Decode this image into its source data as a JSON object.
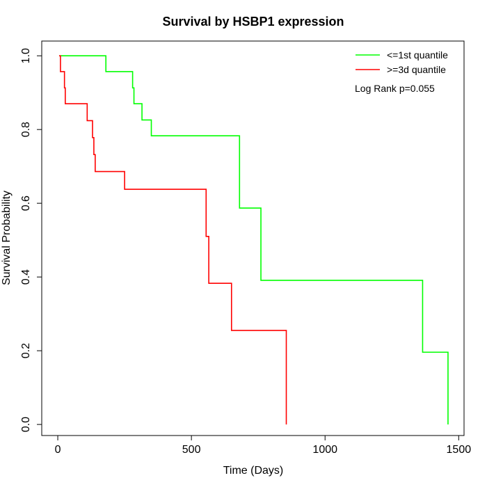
{
  "chart_data": {
    "type": "line",
    "title": "Survival by HSBP1 expression",
    "xlabel": "Time (Days)",
    "ylabel": "Survival Probability",
    "xlim": [
      -60,
      1520
    ],
    "ylim": [
      -0.03,
      1.04
    ],
    "x_ticks": [
      0,
      500,
      1000,
      1500
    ],
    "x_tick_labels": [
      "0",
      "500",
      "1000",
      "1500"
    ],
    "y_ticks": [
      0.0,
      0.2,
      0.4,
      0.6,
      0.8,
      1.0
    ],
    "y_tick_labels": [
      "0.0",
      "0.2",
      "0.4",
      "0.6",
      "0.8",
      "1.0"
    ],
    "legend_position": "top-right",
    "grid": false,
    "series": [
      {
        "name": "<=1st quantile",
        "color": "#00ff00",
        "x": [
          5,
          180,
          180,
          280,
          280,
          285,
          285,
          315,
          315,
          350,
          350,
          680,
          680,
          760,
          760,
          1365,
          1365,
          1460,
          1460
        ],
        "y": [
          1.0,
          1.0,
          0.957,
          0.957,
          0.913,
          0.913,
          0.87,
          0.87,
          0.826,
          0.826,
          0.783,
          0.783,
          0.587,
          0.587,
          0.391,
          0.391,
          0.196,
          0.196,
          0.0
        ]
      },
      {
        "name": ">=3d quantile",
        "color": "#ff0000",
        "x": [
          5,
          10,
          10,
          25,
          25,
          28,
          28,
          110,
          110,
          130,
          130,
          135,
          135,
          140,
          140,
          250,
          250,
          555,
          555,
          565,
          565,
          650,
          650,
          855,
          855
        ],
        "y": [
          1.0,
          1.0,
          0.957,
          0.957,
          0.913,
          0.913,
          0.87,
          0.87,
          0.824,
          0.824,
          0.778,
          0.778,
          0.732,
          0.732,
          0.686,
          0.686,
          0.638,
          0.638,
          0.51,
          0.51,
          0.383,
          0.383,
          0.255,
          0.255,
          0.0
        ]
      }
    ],
    "annotation": "Log Rank p=0.055"
  }
}
